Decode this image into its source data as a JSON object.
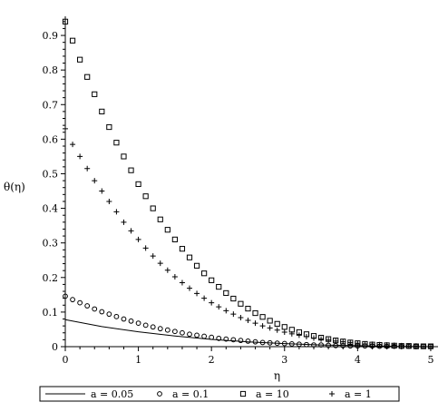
{
  "chart_data": {
    "type": "line",
    "xlabel": "η",
    "ylabel": "θ(η)",
    "xlim": [
      0,
      5.1
    ],
    "ylim": [
      0,
      0.95
    ],
    "x_ticks": [
      "0",
      "1",
      "2",
      "3",
      "4",
      "5"
    ],
    "y_ticks": [
      "0",
      "0.1",
      "0.2",
      "0.3",
      "0.4",
      "0.5",
      "0.6",
      "0.7",
      "0.8",
      "0.9"
    ],
    "grid": false,
    "legend_position": "bottom",
    "series": [
      {
        "name": "a = 0.05",
        "style": "line",
        "color": "#000000",
        "x": [
          0,
          0.5,
          1,
          1.5,
          2,
          2.5,
          3,
          3.5,
          4,
          4.5,
          5
        ],
        "y": [
          0.078,
          0.058,
          0.043,
          0.031,
          0.021,
          0.014,
          0.009,
          0.005,
          0.003,
          0.001,
          0.0
        ]
      },
      {
        "name": "a = 0.1",
        "style": "circle",
        "color": "#000000",
        "x": [
          0,
          0.1,
          0.2,
          0.3,
          0.4,
          0.5,
          0.6,
          0.7,
          0.8,
          0.9,
          1.0,
          1.1,
          1.2,
          1.3,
          1.4,
          1.5,
          1.6,
          1.7,
          1.8,
          1.9,
          2.0,
          2.1,
          2.2,
          2.3,
          2.4,
          2.5,
          2.6,
          2.7,
          2.8,
          2.9,
          3.0,
          3.1,
          3.2,
          3.3,
          3.4,
          3.5,
          3.6,
          3.7,
          3.8,
          3.9,
          4.0,
          4.1,
          4.2,
          4.3,
          4.4,
          4.5,
          4.6,
          4.7,
          4.8,
          4.9,
          5.0
        ],
        "y": [
          0.146,
          0.136,
          0.127,
          0.118,
          0.109,
          0.101,
          0.094,
          0.087,
          0.08,
          0.074,
          0.068,
          0.062,
          0.057,
          0.052,
          0.048,
          0.044,
          0.04,
          0.036,
          0.033,
          0.03,
          0.027,
          0.024,
          0.022,
          0.02,
          0.018,
          0.016,
          0.014,
          0.012,
          0.011,
          0.01,
          0.009,
          0.008,
          0.007,
          0.006,
          0.005,
          0.005,
          0.004,
          0.003,
          0.003,
          0.002,
          0.002,
          0.002,
          0.002,
          0.001,
          0.001,
          0.001,
          0.001,
          0.001,
          0.001,
          0.001,
          0.001
        ]
      },
      {
        "name": "a = 10",
        "style": "square",
        "color": "#000000",
        "x": [
          0,
          0.1,
          0.2,
          0.3,
          0.4,
          0.5,
          0.6,
          0.7,
          0.8,
          0.9,
          1.0,
          1.1,
          1.2,
          1.3,
          1.4,
          1.5,
          1.6,
          1.7,
          1.8,
          1.9,
          2.0,
          2.1,
          2.2,
          2.3,
          2.4,
          2.5,
          2.6,
          2.7,
          2.8,
          2.9,
          3.0,
          3.1,
          3.2,
          3.3,
          3.4,
          3.5,
          3.6,
          3.7,
          3.8,
          3.9,
          4.0,
          4.1,
          4.2,
          4.3,
          4.4,
          4.5,
          4.6,
          4.7,
          4.8,
          4.9,
          5.0
        ],
        "y": [
          0.94,
          0.885,
          0.83,
          0.78,
          0.73,
          0.68,
          0.635,
          0.59,
          0.55,
          0.51,
          0.47,
          0.435,
          0.4,
          0.368,
          0.338,
          0.31,
          0.283,
          0.258,
          0.234,
          0.212,
          0.192,
          0.173,
          0.155,
          0.139,
          0.124,
          0.11,
          0.097,
          0.086,
          0.075,
          0.066,
          0.057,
          0.049,
          0.042,
          0.036,
          0.031,
          0.026,
          0.022,
          0.018,
          0.015,
          0.012,
          0.01,
          0.008,
          0.006,
          0.005,
          0.004,
          0.003,
          0.002,
          0.002,
          0.001,
          0.001,
          0.001
        ]
      },
      {
        "name": "a = 1",
        "style": "plus",
        "color": "#000000",
        "x": [
          0,
          0.1,
          0.2,
          0.3,
          0.4,
          0.5,
          0.6,
          0.7,
          0.8,
          0.9,
          1.0,
          1.1,
          1.2,
          1.3,
          1.4,
          1.5,
          1.6,
          1.7,
          1.8,
          1.9,
          2.0,
          2.1,
          2.2,
          2.3,
          2.4,
          2.5,
          2.6,
          2.7,
          2.8,
          2.9,
          3.0,
          3.1,
          3.2,
          3.3,
          3.4,
          3.5,
          3.6,
          3.7,
          3.8,
          3.9,
          4.0,
          4.1,
          4.2,
          4.3,
          4.4,
          4.5,
          4.6,
          4.7,
          4.8,
          4.9,
          5.0
        ],
        "y": [
          0.63,
          0.585,
          0.55,
          0.515,
          0.48,
          0.45,
          0.42,
          0.39,
          0.36,
          0.335,
          0.31,
          0.285,
          0.262,
          0.241,
          0.221,
          0.202,
          0.185,
          0.169,
          0.154,
          0.14,
          0.127,
          0.115,
          0.104,
          0.094,
          0.084,
          0.076,
          0.068,
          0.06,
          0.054,
          0.048,
          0.042,
          0.037,
          0.033,
          0.029,
          0.025,
          0.022,
          0.019,
          0.016,
          0.014,
          0.012,
          0.01,
          0.008,
          0.007,
          0.006,
          0.005,
          0.004,
          0.003,
          0.002,
          0.002,
          0.001,
          0.001
        ]
      }
    ]
  }
}
